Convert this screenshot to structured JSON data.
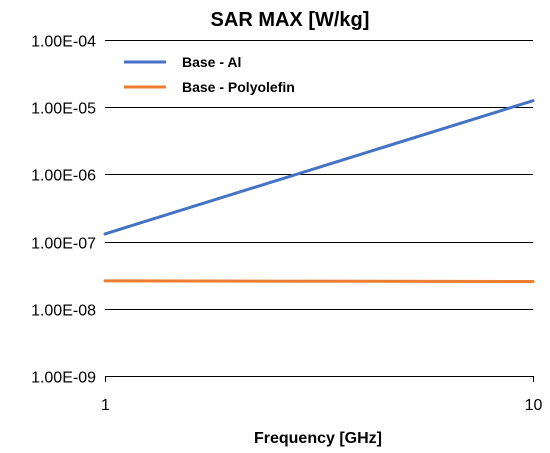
{
  "chart_data": {
    "type": "line",
    "title": "SAR MAX [W/kg]",
    "xlabel": "Frequency [GHz]",
    "ylabel": "",
    "x_scale": "log",
    "y_scale": "log",
    "xlim": [
      1,
      10
    ],
    "ylim": [
      1e-09,
      0.0001
    ],
    "x_ticks": [
      {
        "value": 1,
        "label": "1"
      },
      {
        "value": 10,
        "label": "10"
      }
    ],
    "y_ticks": [
      {
        "value": 0.0001,
        "label": "1.00E-04"
      },
      {
        "value": 1e-05,
        "label": "1.00E-05"
      },
      {
        "value": 1e-06,
        "label": "1.00E-06"
      },
      {
        "value": 1e-07,
        "label": "1.00E-07"
      },
      {
        "value": 1e-08,
        "label": "1.00E-08"
      },
      {
        "value": 1e-09,
        "label": "1.00E-09"
      }
    ],
    "grid": "horizontal",
    "legend_position": "top-left",
    "series": [
      {
        "name": "Base - Al",
        "color": "#4472C4",
        "x": [
          1,
          10
        ],
        "y": [
          1.3e-07,
          1.25e-05
        ]
      },
      {
        "name": "Base - Polyolefin",
        "color": "#ED7D31",
        "x": [
          1,
          10
        ],
        "y": [
          2.6e-08,
          2.55e-08
        ]
      }
    ]
  }
}
